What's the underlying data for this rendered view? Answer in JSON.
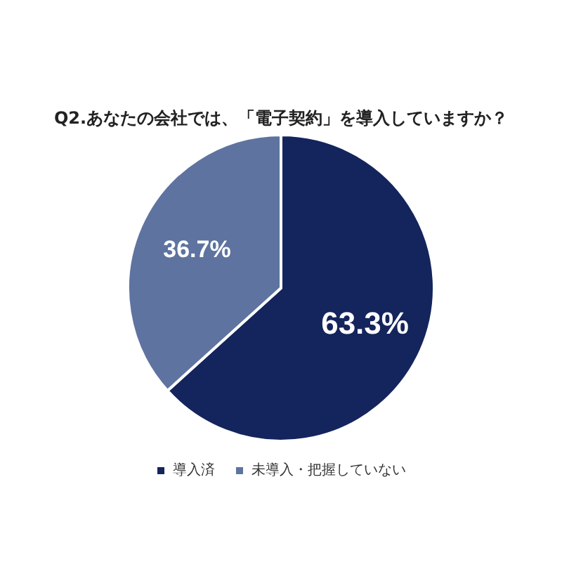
{
  "chart_data": {
    "type": "pie",
    "title": "Q2.あなたの会社では、「電子契約」を導入していますか？",
    "categories": [
      "導入済",
      "未導入・把握していない"
    ],
    "values": [
      63.3,
      36.7
    ],
    "colors": [
      "#14245c",
      "#5e739f"
    ],
    "value_labels": [
      "63.3%",
      "36.7%"
    ],
    "legend": "bottom"
  }
}
